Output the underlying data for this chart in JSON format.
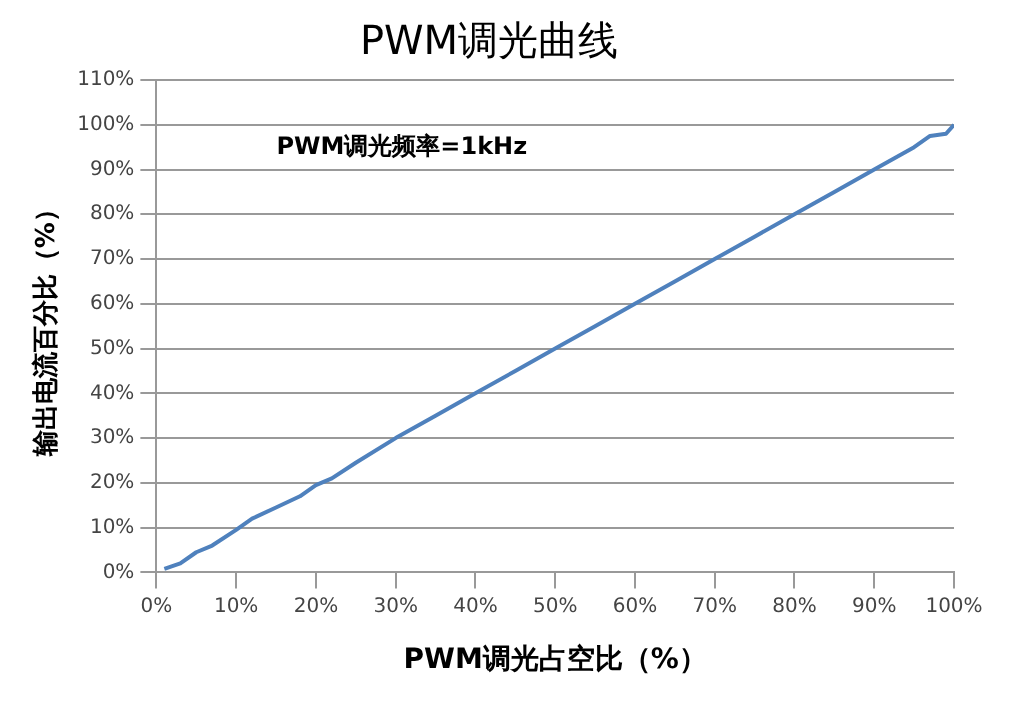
{
  "chart_data": {
    "type": "line",
    "title": "PWM调光曲线",
    "xlabel": "PWM调光占空比（%）",
    "ylabel": "输出电流百分比（%）",
    "annotations": [
      "PWM调光频率=1kHz"
    ],
    "x": [
      1,
      3,
      5,
      7,
      10,
      12,
      15,
      18,
      20,
      22,
      25,
      30,
      35,
      40,
      45,
      50,
      55,
      60,
      65,
      70,
      75,
      80,
      85,
      90,
      95,
      97,
      99,
      100
    ],
    "series": [
      {
        "color": "#4f81bd",
        "values": [
          0.8,
          2,
          4.5,
          6,
          9.5,
          12,
          14.5,
          17,
          19.5,
          21,
          24.5,
          30,
          35,
          40,
          45,
          50,
          55,
          60,
          65,
          70,
          75,
          80,
          85,
          90,
          95,
          97.5,
          98,
          100
        ]
      }
    ],
    "xlim": [
      0,
      100
    ],
    "xticks": [
      {
        "value": 0,
        "label": "0%"
      },
      {
        "value": 10,
        "label": "10%"
      },
      {
        "value": 20,
        "label": "20%"
      },
      {
        "value": 30,
        "label": "30%"
      },
      {
        "value": 40,
        "label": "40%"
      },
      {
        "value": 50,
        "label": "50%"
      },
      {
        "value": 60,
        "label": "60%"
      },
      {
        "value": 70,
        "label": "70%"
      },
      {
        "value": 80,
        "label": "80%"
      },
      {
        "value": 90,
        "label": "90%"
      },
      {
        "value": 100,
        "label": "100%"
      }
    ],
    "ylim": [
      0,
      110
    ],
    "yticks": [
      {
        "value": 0,
        "label": "0%"
      },
      {
        "value": 10,
        "label": "10%"
      },
      {
        "value": 20,
        "label": "20%"
      },
      {
        "value": 30,
        "label": "30%"
      },
      {
        "value": 40,
        "label": "40%"
      },
      {
        "value": 50,
        "label": "50%"
      },
      {
        "value": 60,
        "label": "60%"
      },
      {
        "value": 70,
        "label": "70%"
      },
      {
        "value": 80,
        "label": "80%"
      },
      {
        "value": 90,
        "label": "90%"
      },
      {
        "value": 100,
        "label": "100%"
      },
      {
        "value": 110,
        "label": "110%"
      }
    ],
    "grid": "y",
    "legend": false,
    "marker": "none",
    "line_style": "solid"
  }
}
